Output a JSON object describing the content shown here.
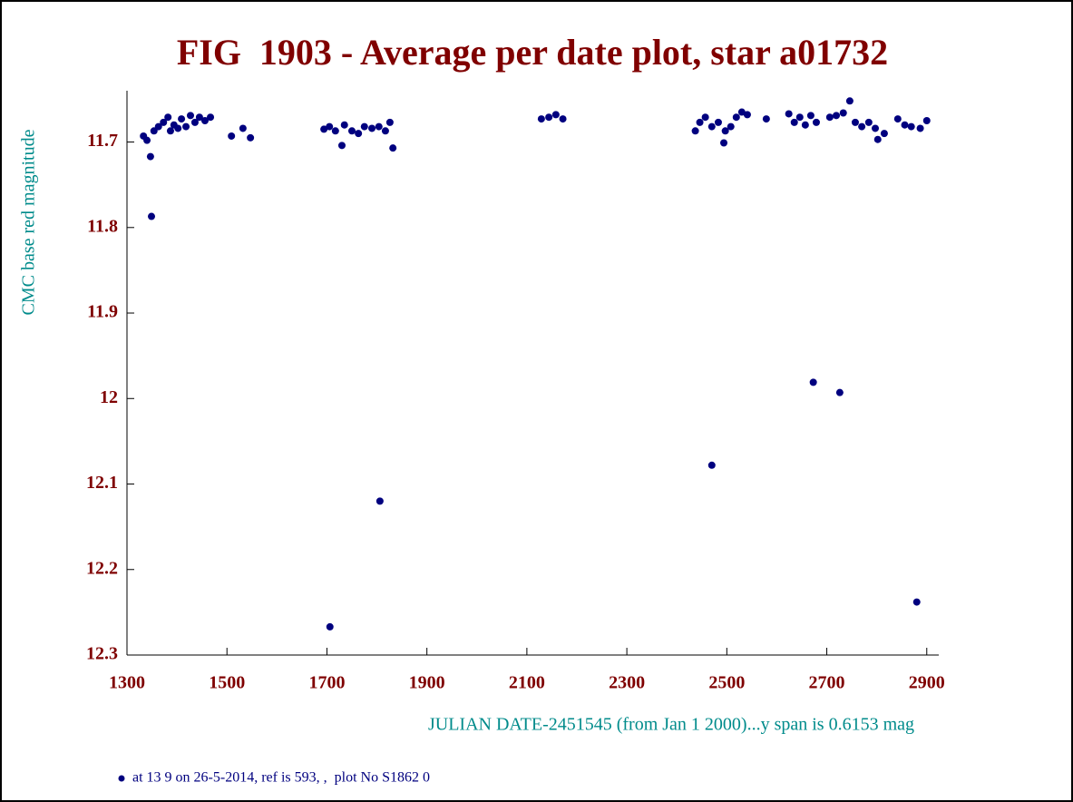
{
  "chart_data": {
    "type": "scatter",
    "title": "FIG  1903 - Average per date plot, star a01732",
    "y_label": "CMC base red magnitude",
    "x_label": "JULIAN DATE-2451545 (from Jan 1 2000)...y span is 0.6153 mag",
    "xlim": [
      1300,
      2924
    ],
    "ylim": [
      11.64,
      12.3
    ],
    "y_inverted": true,
    "xticks": [
      1300,
      1500,
      1700,
      1900,
      2100,
      2300,
      2500,
      2700,
      2900
    ],
    "yticks": [
      11.7,
      11.8,
      11.9,
      12,
      12.1,
      12.2,
      12.3
    ],
    "grid": false,
    "legend": "bottom-left",
    "series": [
      {
        "name": "at 13 9 on 26-5-2014, ref is 593, ,  plot No S1862 0",
        "color": "#00007f",
        "x": [
          1333,
          1340,
          1347,
          1349,
          1354,
          1363,
          1373,
          1382,
          1387,
          1394,
          1402,
          1409,
          1418,
          1427,
          1436,
          1445,
          1456,
          1467,
          1509,
          1532,
          1547,
          1694,
          1705,
          1717,
          1730,
          1735,
          1750,
          1763,
          1775,
          1790,
          1804,
          1817,
          1826,
          1832,
          1706,
          1806,
          2129,
          2144,
          2158,
          2172,
          2437,
          2446,
          2457,
          2470,
          2483,
          2494,
          2497,
          2508,
          2519,
          2530,
          2541,
          2579,
          2470,
          2624,
          2635,
          2646,
          2657,
          2668,
          2679,
          2706,
          2719,
          2733,
          2746,
          2757,
          2770,
          2784,
          2797,
          2802,
          2815,
          2842,
          2856,
          2869,
          2887,
          2900,
          2673,
          2726,
          2880
        ],
        "values": [
          11.693,
          11.698,
          11.717,
          11.787,
          11.687,
          11.682,
          11.677,
          11.671,
          11.687,
          11.68,
          11.684,
          11.673,
          11.682,
          11.669,
          11.677,
          11.671,
          11.675,
          11.671,
          11.693,
          11.684,
          11.695,
          11.685,
          11.682,
          11.687,
          11.704,
          11.68,
          11.687,
          11.69,
          11.682,
          11.684,
          11.682,
          11.687,
          11.677,
          11.707,
          12.267,
          12.12,
          11.673,
          11.671,
          11.668,
          11.673,
          11.687,
          11.677,
          11.671,
          11.682,
          11.677,
          11.701,
          11.687,
          11.682,
          11.671,
          11.665,
          11.668,
          11.673,
          12.078,
          11.667,
          11.677,
          11.671,
          11.68,
          11.669,
          11.677,
          11.671,
          11.669,
          11.666,
          11.652,
          11.677,
          11.682,
          11.677,
          11.684,
          11.697,
          11.69,
          11.673,
          11.68,
          11.682,
          11.684,
          11.675,
          11.981,
          11.993,
          12.238
        ]
      }
    ]
  }
}
